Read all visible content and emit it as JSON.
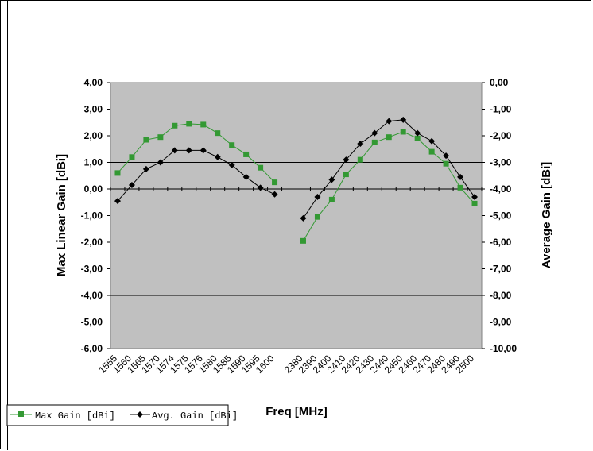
{
  "chart_data": {
    "type": "line",
    "title": "",
    "xlabel": "Freq [MHz]",
    "ylabel_left": "Max Linear Gain [dBi]",
    "ylabel_right": "Average Gain [dBi]",
    "ylim_left": [
      -6,
      4
    ],
    "ylim_right": [
      -10,
      0
    ],
    "y_left_ticks": [
      "4,00",
      "3,00",
      "2,00",
      "1,00",
      "0,00",
      "-1,00",
      "-2,00",
      "-3,00",
      "-4,00",
      "-5,00",
      "-6,00"
    ],
    "y_right_ticks": [
      "0,00",
      "-1,00",
      "-2,00",
      "-3,00",
      "-4,00",
      "-5,00",
      "-6,00",
      "-7,00",
      "-8,00",
      "-9,00",
      "-10,00"
    ],
    "categories": [
      "1555",
      "1560",
      "1565",
      "1570",
      "1574",
      "1575",
      "1576",
      "1580",
      "1585",
      "1590",
      "1595",
      "1600",
      "",
      "2380",
      "2390",
      "2400",
      "2410",
      "2420",
      "2430",
      "2440",
      "2450",
      "2460",
      "2470",
      "2480",
      "2490",
      "2500"
    ],
    "grid_lines_left": [
      1,
      -4
    ],
    "plot_background": "#c0c0c0",
    "series": [
      {
        "name": "Max Gain [dBi]",
        "color": "#339933",
        "marker": "square",
        "axis": "left",
        "values": [
          0.6,
          1.2,
          1.85,
          1.95,
          2.38,
          2.45,
          2.42,
          2.1,
          1.65,
          1.3,
          0.8,
          0.25,
          null,
          -1.95,
          -1.05,
          -0.4,
          0.55,
          1.1,
          1.75,
          1.95,
          2.15,
          1.9,
          1.4,
          0.95,
          0.05,
          -0.55
        ]
      },
      {
        "name": "Avg. Gain [dBi]",
        "color": "#000000",
        "marker": "diamond",
        "axis": "right",
        "values": [
          -4.45,
          -3.85,
          -3.25,
          -3.0,
          -2.55,
          -2.55,
          -2.55,
          -2.8,
          -3.1,
          -3.55,
          -3.95,
          -4.2,
          null,
          -5.1,
          -4.3,
          -3.65,
          -2.9,
          -2.3,
          -1.9,
          -1.45,
          -1.4,
          -1.9,
          -2.2,
          -2.75,
          -3.55,
          -4.3
        ]
      }
    ],
    "legend": {
      "position": "bottom-left",
      "labels": [
        "Max Gain [dBi]",
        "Avg. Gain [dBi]"
      ]
    }
  }
}
